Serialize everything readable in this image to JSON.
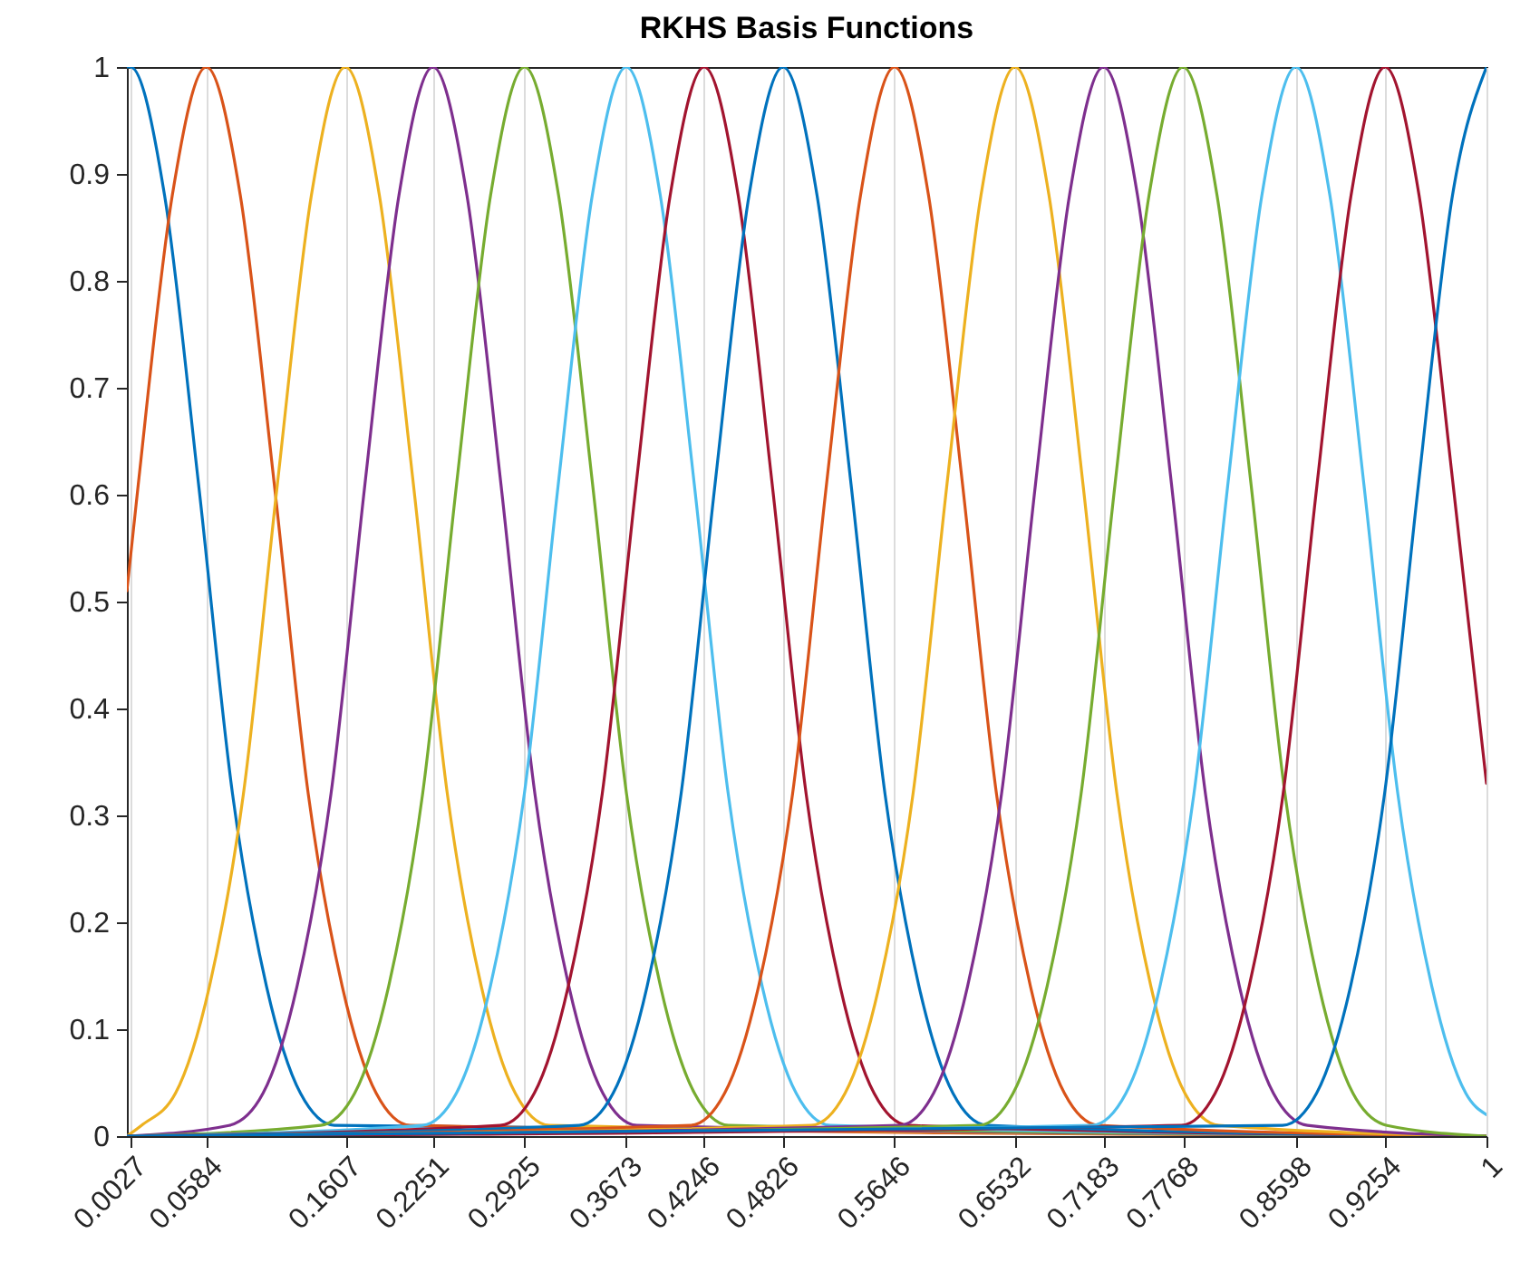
{
  "chart_data": {
    "type": "line",
    "title": "RKHS Basis Functions",
    "xlim": [
      0,
      1
    ],
    "ylim": [
      0,
      1
    ],
    "xticks": [
      0.0027,
      0.0584,
      0.1607,
      0.2251,
      0.2925,
      0.3673,
      0.4246,
      0.4826,
      0.5646,
      0.6532,
      0.7183,
      0.7768,
      0.8598,
      0.9254,
      1
    ],
    "yticks": [
      0,
      0.1,
      0.2,
      0.3,
      0.4,
      0.5,
      0.6,
      0.7,
      0.8,
      0.9,
      1
    ],
    "grid": "x",
    "legend": false,
    "marker": "none",
    "line_style": "solid",
    "series": [
      {
        "color": "#0072bd",
        "x": [
          0,
          0.0027,
          0.0277,
          0.0527,
          0.0777,
          0.1027,
          0.1277,
          0.1527,
          1
        ],
        "values": [
          1,
          1,
          0.88,
          0.61,
          0.32,
          0.14,
          0.04,
          0.01,
          0
        ]
      },
      {
        "color": "#d95319",
        "x": [
          0,
          0.0084,
          0.0334,
          0.0584,
          0.0834,
          0.1084,
          0.1334,
          0.1584,
          0.1834,
          0.2084,
          1
        ],
        "values": [
          0.51,
          0.61,
          0.88,
          1,
          0.88,
          0.61,
          0.32,
          0.14,
          0.04,
          0.01,
          0
        ]
      },
      {
        "color": "#edb120",
        "x": [
          0,
          0.0107,
          0.0357,
          0.0607,
          0.0857,
          0.1107,
          0.1357,
          0.1607,
          0.1857,
          0.2107,
          0.2357,
          0.2607,
          0.2857,
          0.3107,
          1
        ],
        "values": [
          0,
          0.01,
          0.04,
          0.14,
          0.32,
          0.61,
          0.88,
          1,
          0.88,
          0.61,
          0.32,
          0.14,
          0.04,
          0.01,
          0
        ]
      },
      {
        "color": "#7e2f8e",
        "x": [
          0,
          0.0751,
          0.1001,
          0.1251,
          0.1501,
          0.1751,
          0.2001,
          0.2251,
          0.2501,
          0.2751,
          0.3001,
          0.3251,
          0.3501,
          0.3751,
          1
        ],
        "values": [
          0,
          0.01,
          0.04,
          0.14,
          0.32,
          0.61,
          0.88,
          1,
          0.88,
          0.61,
          0.32,
          0.14,
          0.04,
          0.01,
          0
        ]
      },
      {
        "color": "#77ac30",
        "x": [
          0,
          0.1425,
          0.1675,
          0.1925,
          0.2175,
          0.2425,
          0.2675,
          0.2925,
          0.3175,
          0.3425,
          0.3675,
          0.3925,
          0.4175,
          0.4425,
          1
        ],
        "values": [
          0,
          0.01,
          0.04,
          0.14,
          0.32,
          0.61,
          0.88,
          1,
          0.88,
          0.61,
          0.32,
          0.14,
          0.04,
          0.01,
          0
        ]
      },
      {
        "color": "#4dbeee",
        "x": [
          0,
          0.2173,
          0.2423,
          0.2673,
          0.2923,
          0.3173,
          0.3423,
          0.3673,
          0.3923,
          0.4173,
          0.4423,
          0.4673,
          0.4923,
          0.5173,
          1
        ],
        "values": [
          0,
          0.01,
          0.04,
          0.14,
          0.32,
          0.61,
          0.88,
          1,
          0.88,
          0.61,
          0.32,
          0.14,
          0.04,
          0.01,
          0
        ]
      },
      {
        "color": "#a2142f",
        "x": [
          0,
          0.2746,
          0.2996,
          0.3246,
          0.3496,
          0.3746,
          0.3996,
          0.4246,
          0.4496,
          0.4746,
          0.4996,
          0.5246,
          0.5496,
          0.5746,
          1
        ],
        "values": [
          0,
          0.01,
          0.04,
          0.14,
          0.32,
          0.61,
          0.88,
          1,
          0.88,
          0.61,
          0.32,
          0.14,
          0.04,
          0.01,
          0
        ]
      },
      {
        "color": "#0072bd",
        "x": [
          0,
          0.3326,
          0.3576,
          0.3826,
          0.4076,
          0.4326,
          0.4576,
          0.4826,
          0.5076,
          0.5326,
          0.5576,
          0.5826,
          0.6076,
          0.6326,
          1
        ],
        "values": [
          0,
          0.01,
          0.04,
          0.14,
          0.32,
          0.61,
          0.88,
          1,
          0.88,
          0.61,
          0.32,
          0.14,
          0.04,
          0.01,
          0
        ]
      },
      {
        "color": "#d95319",
        "x": [
          0,
          0.4146,
          0.4396,
          0.4646,
          0.4896,
          0.5146,
          0.5396,
          0.5646,
          0.5896,
          0.6146,
          0.6396,
          0.6646,
          0.6896,
          0.7146,
          1
        ],
        "values": [
          0,
          0.01,
          0.04,
          0.14,
          0.32,
          0.61,
          0.88,
          1,
          0.88,
          0.61,
          0.32,
          0.14,
          0.04,
          0.01,
          0
        ]
      },
      {
        "color": "#edb120",
        "x": [
          0,
          0.5032,
          0.5282,
          0.5532,
          0.5782,
          0.6032,
          0.6282,
          0.6532,
          0.6782,
          0.7032,
          0.7282,
          0.7532,
          0.7782,
          0.8032,
          1
        ],
        "values": [
          0,
          0.01,
          0.04,
          0.14,
          0.32,
          0.61,
          0.88,
          1,
          0.88,
          0.61,
          0.32,
          0.14,
          0.04,
          0.01,
          0
        ]
      },
      {
        "color": "#7e2f8e",
        "x": [
          0,
          0.5683,
          0.5933,
          0.6183,
          0.6433,
          0.6683,
          0.6933,
          0.7183,
          0.7433,
          0.7683,
          0.7933,
          0.8183,
          0.8433,
          0.8683,
          1
        ],
        "values": [
          0,
          0.01,
          0.04,
          0.14,
          0.32,
          0.61,
          0.88,
          1,
          0.88,
          0.61,
          0.32,
          0.14,
          0.04,
          0.01,
          0
        ]
      },
      {
        "color": "#77ac30",
        "x": [
          0,
          0.6268,
          0.6518,
          0.6768,
          0.7018,
          0.7268,
          0.7518,
          0.7768,
          0.8018,
          0.8268,
          0.8518,
          0.8768,
          0.9018,
          0.9268,
          1
        ],
        "values": [
          0,
          0.01,
          0.04,
          0.14,
          0.32,
          0.61,
          0.88,
          1,
          0.88,
          0.61,
          0.32,
          0.14,
          0.04,
          0.01,
          0
        ]
      },
      {
        "color": "#4dbeee",
        "x": [
          0,
          0.7098,
          0.7348,
          0.7598,
          0.7848,
          0.8098,
          0.8348,
          0.8598,
          0.8848,
          0.9098,
          0.9348,
          0.9598,
          0.9848,
          1
        ],
        "values": [
          0,
          0.01,
          0.04,
          0.14,
          0.32,
          0.61,
          0.88,
          1,
          0.88,
          0.61,
          0.32,
          0.14,
          0.04,
          0.02
        ]
      },
      {
        "color": "#a2142f",
        "x": [
          0,
          0.7754,
          0.8004,
          0.8254,
          0.8504,
          0.8754,
          0.9004,
          0.9254,
          0.9504,
          0.9754,
          1
        ],
        "values": [
          0,
          0.01,
          0.04,
          0.14,
          0.32,
          0.61,
          0.88,
          1,
          0.88,
          0.61,
          0.33
        ]
      },
      {
        "color": "#0072bd",
        "x": [
          0,
          0.85,
          0.875,
          0.9,
          0.925,
          0.95,
          0.975,
          1
        ],
        "values": [
          0,
          0.01,
          0.04,
          0.14,
          0.32,
          0.61,
          0.88,
          1
        ]
      }
    ]
  }
}
